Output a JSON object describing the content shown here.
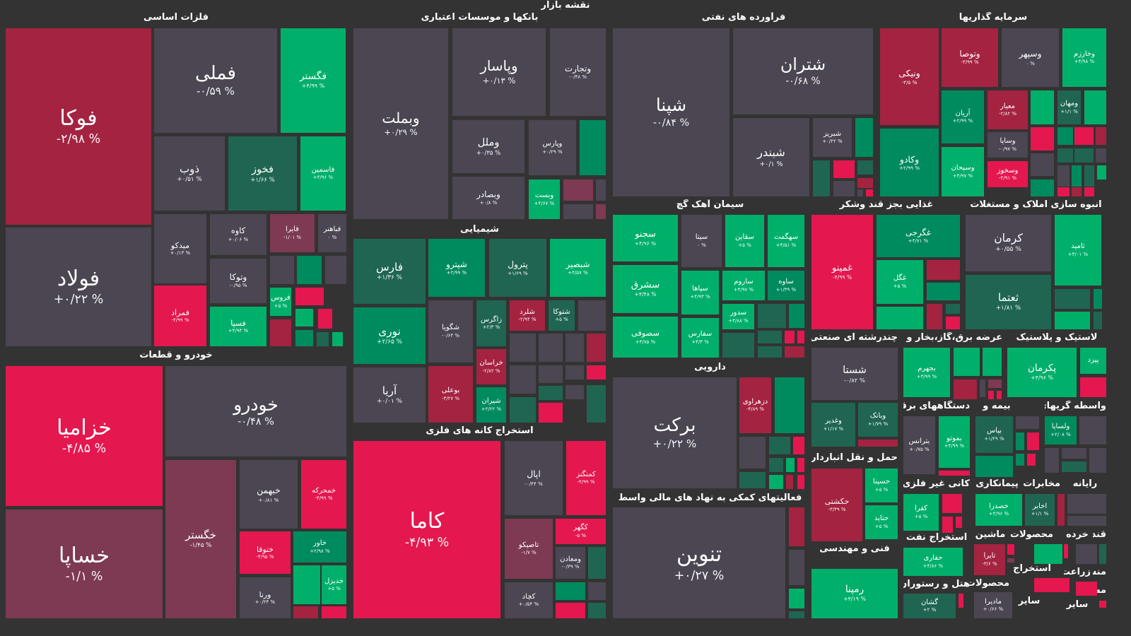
{
  "title": "نقشه بازار",
  "palette": {
    "red": "#e4174f",
    "dred": "#a42341",
    "mauve": "#7d3a52",
    "gray": "#4b4651",
    "green": "#00b06a",
    "mgreen": "#008b5e",
    "dgreen": "#1f6552"
  },
  "headers": [
    "فلزات اساسی",
    "خودرو و قطعات",
    "بانکها و موسسات اعتباری",
    "شیمیایی",
    "استخراج کانه های فلزی",
    "فرآورده های نفتی",
    "سیمان آهک گچ",
    "دارویی",
    "فعالیتهای کمکی به نهاد های مالی واسط",
    "غذایی بجز قند وشکر",
    "انبوه سازی املاک و مستغلات",
    "سرمایه گذاریها",
    "چندرشته ای صنعتی",
    "حمل و نقل انبارداری و",
    "فنی و مهندسی",
    "عرضه برق،گاز،بخار و آب",
    "لاستیک و پلاستیک",
    "دستگاههای برقی",
    "بیمه و",
    "واسطه گریهای",
    "کانی غیر فلزی",
    "پیمانکاری",
    "مخابرات",
    "رایانه",
    "استخراج نفت",
    "هتل و رستوران",
    "ماشین",
    "محصولات",
    "خرده",
    "قند و",
    "استخراج",
    "زراعت",
    "محصولات",
    "سایر",
    "سایر",
    "منسو",
    "مه اسا"
  ],
  "tiles": [
    {
      "label": "فوکا",
      "value": "-۲/۹۸ %",
      "color": "dred"
    },
    {
      "label": "فولاد",
      "value": "+۰/۲۲ %",
      "color": "gray"
    },
    {
      "label": "فملی",
      "value": "-۰/۵۹ %",
      "color": "gray"
    },
    {
      "label": "فگستر",
      "value": "+۴/۹۹ %",
      "color": "green"
    },
    {
      "label": "ذوب",
      "value": "+۰/۵۱ %",
      "color": "gray"
    },
    {
      "label": "فخوز",
      "value": "+۱/۶۶ %",
      "color": "dgreen"
    },
    {
      "label": "فاسمین",
      "value": "+۴/۹۶ %",
      "color": "green"
    },
    {
      "label": "میدکو",
      "value": "+۰/۱۳ %",
      "color": "gray"
    },
    {
      "label": "کاوه",
      "value": "+۰/۰۶ %",
      "color": "gray"
    },
    {
      "label": "فایرا",
      "value": "-۱/۰۱ %",
      "color": "mauve"
    },
    {
      "label": "فباهنر",
      "value": "۰ %",
      "color": "gray"
    },
    {
      "label": "فمراد",
      "value": "-۴/۹۹ %",
      "color": "red"
    },
    {
      "label": "وتوکا",
      "value": "-۰/۹۵ %",
      "color": "gray"
    },
    {
      "label": "فسپا",
      "value": "+۴/۹۴ %",
      "color": "green"
    },
    {
      "label": "فروس",
      "value": "+۵ %",
      "color": "green"
    },
    {
      "color": "gray"
    },
    {
      "color": "mgreen"
    },
    {
      "color": "gray"
    },
    {
      "color": "red"
    },
    {
      "color": "green"
    },
    {
      "color": "red"
    },
    {
      "color": "dred"
    },
    {
      "color": "mgreen"
    },
    {
      "color": "dgreen"
    },
    {
      "color": "green"
    },
    {
      "label": "خزامیا",
      "value": "-۴/۸۵ %",
      "color": "red"
    },
    {
      "label": "خساپا",
      "value": "-۱/۱ %",
      "color": "mauve"
    },
    {
      "label": "خودرو",
      "value": "-۰/۴۸ %",
      "color": "gray"
    },
    {
      "label": "خگستر",
      "value": "-۱/۴۵ %",
      "color": "mauve"
    },
    {
      "label": "خبهمن",
      "value": "+۰/۸۱ %",
      "color": "gray"
    },
    {
      "label": "خمحرکه",
      "value": "-۴/۹۹ %",
      "color": "red"
    },
    {
      "label": "خاور",
      "value": "+۲/۹۸ %",
      "color": "mgreen"
    },
    {
      "label": "ختوقا",
      "value": "-۴/۹۵ %",
      "color": "red"
    },
    {
      "label": "ورنا",
      "value": "+۰/۲۴ %",
      "color": "gray"
    },
    {
      "label": "خدیزل",
      "value": "+۵ %",
      "color": "green"
    },
    {
      "color": "green"
    },
    {
      "color": "dred"
    },
    {
      "color": "red"
    },
    {
      "label": "وبملت",
      "value": "+۰/۲۹ %",
      "color": "gray"
    },
    {
      "label": "وپاسار",
      "value": "+۰/۱۳ %",
      "color": "gray"
    },
    {
      "label": "وتجارت",
      "value": "-۰/۴۸ %",
      "color": "gray"
    },
    {
      "label": "وملل",
      "value": "+۰/۳۵ %",
      "color": "gray"
    },
    {
      "label": "وپارس",
      "value": "+۰/۲۹ %",
      "color": "gray"
    },
    {
      "color": "mgreen"
    },
    {
      "label": "وبصادر",
      "value": "+۰/۸ %",
      "color": "gray"
    },
    {
      "label": "وبست",
      "value": "+۴/۶۷ %",
      "color": "green"
    },
    {
      "color": "mauve"
    },
    {
      "color": "gray"
    },
    {
      "color": "gray"
    },
    {
      "color": "mauve"
    },
    {
      "label": "فارس",
      "value": "+۱/۳۶ %",
      "color": "dgreen"
    },
    {
      "label": "شپترو",
      "value": "+۲/۹۹ %",
      "color": "mgreen"
    },
    {
      "label": "پترول",
      "value": "+۱/۶۹ %",
      "color": "dgreen"
    },
    {
      "label": "شبصیر",
      "value": "+۴/۵۷ %",
      "color": "green"
    },
    {
      "label": "نوری",
      "value": "+۲/۶۵ %",
      "color": "mgreen"
    },
    {
      "label": "شگویا",
      "value": "-۰/۶۳ %",
      "color": "gray"
    },
    {
      "label": "زاگرس",
      "value": "+۲/۳ %",
      "color": "dgreen"
    },
    {
      "label": "شلرد",
      "value": "-۲/۹۴ %",
      "color": "dred"
    },
    {
      "label": "شتوکا",
      "value": "+۵ %",
      "color": "dgreen"
    },
    {
      "color": "gray"
    },
    {
      "label": "آریا",
      "value": "+۰/۰۱ %",
      "color": "gray"
    },
    {
      "label": "بوعلی",
      "value": "-۳/۲۷ %",
      "color": "dred"
    },
    {
      "label": "خراسان",
      "value": "-۲/۸۲ %",
      "color": "dred"
    },
    {
      "label": "شیران",
      "value": "+۲/۲۲ %",
      "color": "mgreen"
    },
    {
      "color": "gray"
    },
    {
      "color": "gray"
    },
    {
      "color": "gray"
    },
    {
      "color": "dred"
    },
    {
      "color": "gray"
    },
    {
      "color": "gray"
    },
    {
      "color": "gray"
    },
    {
      "color": "red"
    },
    {
      "color": "dgreen"
    },
    {
      "color": "dgreen"
    },
    {
      "color": "red"
    },
    {
      "color": "gray"
    },
    {
      "color": "dgreen"
    },
    {
      "label": "کاما",
      "value": "-۴/۹۳ %",
      "color": "red"
    },
    {
      "label": "اپال",
      "value": "-۰/۴۴ %",
      "color": "gray"
    },
    {
      "label": "کمنگنز",
      "value": "-۴/۹۹ %",
      "color": "red"
    },
    {
      "label": "تاصیکو",
      "value": "-۱/۷ %",
      "color": "mauve"
    },
    {
      "label": "کگهر",
      "value": "-۵ %",
      "color": "red"
    },
    {
      "label": "ومعادن",
      "value": "-۰/۳۹ %",
      "color": "gray"
    },
    {
      "color": "dgreen"
    },
    {
      "label": "کچاد",
      "value": "+۰/۵۴ %",
      "color": "gray"
    },
    {
      "color": "mgreen"
    },
    {
      "color": "gray"
    },
    {
      "color": "red"
    },
    {
      "color": "dgreen"
    },
    {
      "label": "شپنا",
      "value": "-۰/۸۴ %",
      "color": "gray"
    },
    {
      "label": "شتران",
      "value": "-۰/۶۸ %",
      "color": "gray"
    },
    {
      "label": "شبندر",
      "value": "+۰/۱ %",
      "color": "gray"
    },
    {
      "label": "شبریز",
      "value": "+۰/۲۲ %",
      "color": "gray"
    },
    {
      "color": "mgreen"
    },
    {
      "color": "dgreen"
    },
    {
      "color": "red"
    },
    {
      "color": "dgreen"
    },
    {
      "color": "gray"
    },
    {
      "color": "dred"
    },
    {
      "color": "gray"
    },
    {
      "color": "red"
    },
    {
      "label": "سجنو",
      "value": "+۴/۹۶ %",
      "color": "green"
    },
    {
      "label": "سیتا",
      "value": "۰ %",
      "color": "gray"
    },
    {
      "label": "سقاین",
      "value": "+۵ %",
      "color": "green"
    },
    {
      "label": "سهگمت",
      "value": "+۴/۵۱ %",
      "color": "green"
    },
    {
      "label": "سشرق",
      "value": "+۴/۴۸ %",
      "color": "green"
    },
    {
      "label": "سپاها",
      "value": "+۴/۹۳ %",
      "color": "green"
    },
    {
      "label": "ساروم",
      "value": "+۴/۹۷ %",
      "color": "green"
    },
    {
      "label": "ساوه",
      "value": "+۱/۳۹ %",
      "color": "mgreen"
    },
    {
      "label": "سدور",
      "value": "+۴/۸۸ %",
      "color": "green"
    },
    {
      "label": "سصوفی",
      "value": "+۴/۷۵ %",
      "color": "green"
    },
    {
      "label": "سفارس",
      "value": "+۴/۳ %",
      "color": "green"
    },
    {
      "color": "dgreen"
    },
    {
      "color": "mgreen"
    },
    {
      "color": "dgreen"
    },
    {
      "color": "dgreen"
    },
    {
      "color": "red"
    },
    {
      "color": "red"
    },
    {
      "color": "dgreen"
    },
    {
      "color": "dred"
    },
    {
      "label": "برکت",
      "value": "+۰/۲۲ %",
      "color": "gray"
    },
    {
      "label": "دزهراوی",
      "value": "-۳/۸۹ %",
      "color": "dred"
    },
    {
      "color": "mgreen"
    },
    {
      "color": "gray"
    },
    {
      "color": "dgreen"
    },
    {
      "color": "red"
    },
    {
      "color": "dgreen"
    },
    {
      "color": "green"
    },
    {
      "color": "red"
    },
    {
      "color": "dgreen"
    },
    {
      "color": "green"
    },
    {
      "color": "dred"
    },
    {
      "color": "red"
    },
    {
      "label": "تنوین",
      "value": "+۰/۲۷ %",
      "color": "gray"
    },
    {
      "color": "dred"
    },
    {
      "color": "gray"
    },
    {
      "color": "green"
    },
    {
      "color": "dgreen"
    },
    {
      "label": "غمینو",
      "value": "-۴/۹۹ %",
      "color": "red"
    },
    {
      "label": "غگرجی",
      "value": "+۳/۷۱ %",
      "color": "mgreen"
    },
    {
      "label": "غگل",
      "value": "+۵ %",
      "color": "green"
    },
    {
      "color": "dred"
    },
    {
      "color": "mgreen"
    },
    {
      "color": "green"
    },
    {
      "color": "dred"
    },
    {
      "color": "dgreen"
    },
    {
      "color": "red"
    },
    {
      "label": "کرمان",
      "value": "+۰/۵۵ %",
      "color": "gray"
    },
    {
      "label": "ثامید",
      "value": "+۴/۰۱ %",
      "color": "green"
    },
    {
      "label": "ثعتما",
      "value": "+۱/۸۱ %",
      "color": "dgreen"
    },
    {
      "color": "dgreen"
    },
    {
      "color": "mgreen"
    },
    {
      "color": "green"
    },
    {
      "color": "dgreen"
    },
    {
      "label": "ونیکی",
      "value": "-۳/۵ %",
      "color": "dred"
    },
    {
      "label": "وکادو",
      "value": "+۲/۹۹ %",
      "color": "mgreen"
    },
    {
      "label": "وتوصا",
      "value": "-۳/۹۹ %",
      "color": "dred"
    },
    {
      "label": "وسپهر",
      "value": "۰ %",
      "color": "gray"
    },
    {
      "label": "وخارزم",
      "value": "+۴/۹۸ %",
      "color": "green"
    },
    {
      "label": "آریان",
      "value": "+۲/۹۹ %",
      "color": "mgreen"
    },
    {
      "label": "معیار",
      "value": "-۲/۸۲ %",
      "color": "dred"
    },
    {
      "label": "وسپحان",
      "value": "+۴/۹۷ %",
      "color": "green"
    },
    {
      "label": "وساپا",
      "value": "-۰/۹۷ %",
      "color": "gray"
    },
    {
      "label": "وسخوز",
      "value": "-۴/۹۱ %",
      "color": "red"
    },
    {
      "color": "green"
    },
    {
      "label": "ومهان",
      "value": "+۱/۱ %",
      "color": "dgreen"
    },
    {
      "color": "green"
    },
    {
      "color": "red"
    },
    {
      "color": "mgreen"
    },
    {
      "color": "red"
    },
    {
      "color": "dred"
    },
    {
      "color": "gray"
    },
    {
      "color": "dgreen"
    },
    {
      "color": "dgreen"
    },
    {
      "color": "gray"
    },
    {
      "color": "mgreen"
    },
    {
      "color": "gray"
    },
    {
      "color": "mgreen"
    },
    {
      "color": "dgreen"
    },
    {
      "color": "green"
    },
    {
      "color": "red"
    },
    {
      "color": "dred"
    },
    {
      "color": "red"
    },
    {
      "label": "شستا",
      "value": "-۰/۸۲ %",
      "color": "gray"
    },
    {
      "label": "وغدیر",
      "value": "+۱/۱۷ %",
      "color": "dgreen"
    },
    {
      "label": "وبانک",
      "value": "+۱/۷۹ %",
      "color": "dgreen"
    },
    {
      "color": "dred"
    },
    {
      "label": "حکشتی",
      "value": "-۳/۴۹ %",
      "color": "dred"
    },
    {
      "label": "حسینا",
      "value": "+۵ %",
      "color": "green"
    },
    {
      "label": "حتاید",
      "value": "+۵ %",
      "color": "green"
    },
    {
      "label": "رمپنا",
      "value": "+۴/۱۹ %",
      "color": "green"
    },
    {
      "label": "بجهرم",
      "value": "+۴/۹۹ %",
      "color": "green"
    },
    {
      "color": "green"
    },
    {
      "color": "green"
    },
    {
      "color": "dred"
    },
    {
      "color": "gray"
    },
    {
      "color": "mauve"
    },
    {
      "color": "red"
    },
    {
      "color": "red"
    },
    {
      "label": "پکرمان",
      "value": "+۴/۹۶ %",
      "color": "green"
    },
    {
      "label": "پیزد",
      "color": "green"
    },
    {
      "color": "red"
    },
    {
      "label": "بترانس",
      "value": "+۰/۷۵ %",
      "color": "gray"
    },
    {
      "label": "بموتو",
      "value": "+۴/۹۹ %",
      "color": "green"
    },
    {
      "color": "red"
    },
    {
      "label": "بپاس",
      "value": "+۱/۲۹ %",
      "color": "dgreen"
    },
    {
      "color": "gray"
    },
    {
      "color": "mgreen"
    },
    {
      "color": "mgreen"
    },
    {
      "color": "red"
    },
    {
      "color": "mgreen"
    },
    {
      "color": "red"
    },
    {
      "label": "ولساپا",
      "value": "+۲/۰۸ %",
      "color": "mgreen"
    },
    {
      "color": "gray"
    },
    {
      "color": "gray"
    },
    {
      "color": "gray"
    },
    {
      "color": "dgreen"
    },
    {
      "color": "gray"
    },
    {
      "label": "کفرا",
      "value": "+۵ %",
      "color": "green"
    },
    {
      "color": "red"
    },
    {
      "color": "red"
    },
    {
      "color": "red"
    },
    {
      "label": "خصدرا",
      "value": "+۴/۹۶ %",
      "color": "green"
    },
    {
      "label": "اخابر",
      "value": "+۱/۱ %",
      "color": "dgreen"
    },
    {
      "color": "dred"
    },
    {
      "color": "gray"
    },
    {
      "color": "gray"
    },
    {
      "label": "حفاری",
      "value": "+۴/۸۶ %",
      "color": "green"
    },
    {
      "label": "گشان",
      "value": "+۲ %",
      "color": "dgreen"
    },
    {
      "color": "red"
    },
    {
      "label": "تایرا",
      "value": "-۳/۶ %",
      "color": "dred"
    },
    {
      "color": "red"
    },
    {
      "color": "mauve"
    },
    {
      "color": "green"
    },
    {
      "color": "red"
    },
    {
      "color": "red"
    },
    {
      "label": "ماديرا",
      "value": "+۰/۶۶ %",
      "color": "gray"
    },
    {
      "color": "gray"
    },
    {
      "color": "red"
    },
    {
      "color": "dgreen"
    },
    {
      "color": "red"
    }
  ]
}
